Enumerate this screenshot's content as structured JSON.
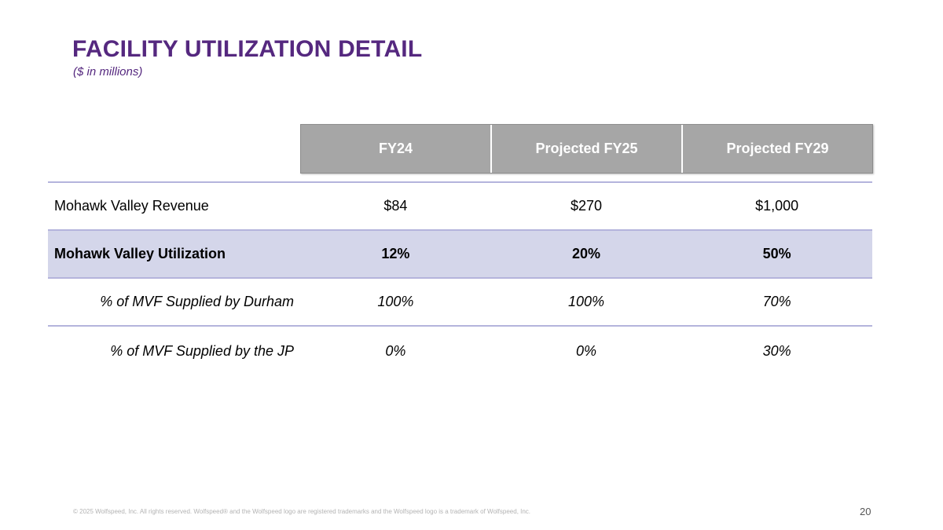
{
  "slide": {
    "title": "FACILITY UTILIZATION DETAIL",
    "subtitle": "($ in millions)"
  },
  "table": {
    "headers": [
      "FY24",
      "Projected FY25",
      "Projected FY29"
    ],
    "rows": [
      {
        "label": "Mohawk Valley Revenue",
        "values": [
          "$84",
          "$270",
          "$1,000"
        ]
      },
      {
        "label": "Mohawk Valley Utilization",
        "values": [
          "12%",
          "20%",
          "50%"
        ]
      },
      {
        "label": "% of MVF Supplied by Durham",
        "values": [
          "100%",
          "100%",
          "70%"
        ]
      },
      {
        "label": "% of MVF Supplied by the JP",
        "values": [
          "0%",
          "0%",
          "30%"
        ]
      }
    ]
  },
  "footer": {
    "copyright": "© 2025 Wolfspeed, Inc. All rights reserved. Wolfspeed® and the Wolfspeed logo are registered trademarks and the Wolfspeed logo is a trademark of Wolfspeed, Inc.",
    "page_number": "20"
  },
  "colors": {
    "title": "#55287f",
    "header_bg": "#a6a6a6",
    "highlight_row": "#d4d6ea",
    "row_divider": "#b4b4dc"
  }
}
